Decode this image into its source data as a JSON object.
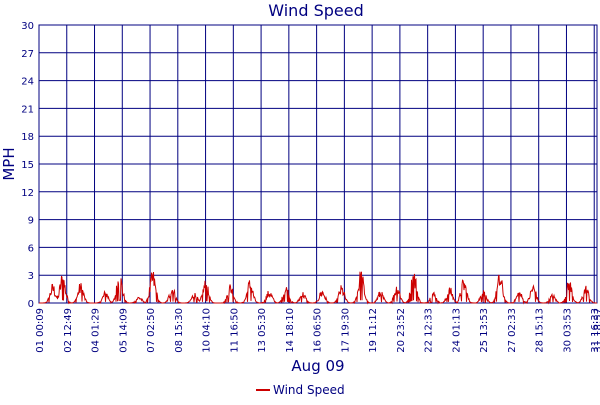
{
  "chart_data": {
    "type": "line",
    "title": "Wind Speed",
    "ylabel": "MPH",
    "xlabel": "Aug 09",
    "ylim": [
      0,
      30
    ],
    "y_ticks": [
      "0",
      "3",
      "6",
      "9",
      "12",
      "15",
      "18",
      "21",
      "24",
      "27",
      "30"
    ],
    "x_tick_labels": [
      "01 00:09",
      "02 12:49",
      "04 01:29",
      "05 14:09",
      "07 02:50",
      "08 15:30",
      "10 04:10",
      "11 16:50",
      "13 05:30",
      "14 18:10",
      "16 06:50",
      "17 19:30",
      "19 11:12",
      "20 23:52",
      "22 12:33",
      "24 01:13",
      "25 13:53",
      "27 02:33",
      "28 15:13",
      "30 03:53",
      "31 16:33",
      "31 18:57"
    ],
    "grid": true,
    "legend_position": "bottom-center",
    "colors": {
      "grid": "#000080",
      "series": "#cc0000",
      "text": "#000080"
    },
    "series": [
      {
        "name": "Wind Speed",
        "peaks": [
          {
            "tick": 0.5,
            "value": 2.2
          },
          {
            "tick": 0.85,
            "value": 3.5
          },
          {
            "tick": 1.5,
            "value": 2.3
          },
          {
            "tick": 2.4,
            "value": 1.4
          },
          {
            "tick": 2.9,
            "value": 3.6
          },
          {
            "tick": 3.6,
            "value": 0.8
          },
          {
            "tick": 4.1,
            "value": 3.7
          },
          {
            "tick": 4.8,
            "value": 2.0
          },
          {
            "tick": 5.6,
            "value": 1.2
          },
          {
            "tick": 6.0,
            "value": 2.6
          },
          {
            "tick": 6.9,
            "value": 2.3
          },
          {
            "tick": 7.6,
            "value": 2.7
          },
          {
            "tick": 8.3,
            "value": 1.5
          },
          {
            "tick": 8.9,
            "value": 2.0
          },
          {
            "tick": 9.5,
            "value": 1.3
          },
          {
            "tick": 10.2,
            "value": 1.6
          },
          {
            "tick": 10.9,
            "value": 2.0
          },
          {
            "tick": 11.6,
            "value": 3.8
          },
          {
            "tick": 12.3,
            "value": 1.4
          },
          {
            "tick": 12.9,
            "value": 2.2
          },
          {
            "tick": 13.5,
            "value": 3.8
          },
          {
            "tick": 14.2,
            "value": 1.3
          },
          {
            "tick": 14.8,
            "value": 1.8
          },
          {
            "tick": 15.3,
            "value": 2.8
          },
          {
            "tick": 16.0,
            "value": 1.5
          },
          {
            "tick": 16.6,
            "value": 3.4
          },
          {
            "tick": 17.3,
            "value": 1.4
          },
          {
            "tick": 17.8,
            "value": 2.2
          },
          {
            "tick": 18.5,
            "value": 1.0
          },
          {
            "tick": 19.1,
            "value": 2.7
          },
          {
            "tick": 19.7,
            "value": 2.0
          },
          {
            "tick": 20.5,
            "value": 1.6
          }
        ]
      }
    ]
  }
}
